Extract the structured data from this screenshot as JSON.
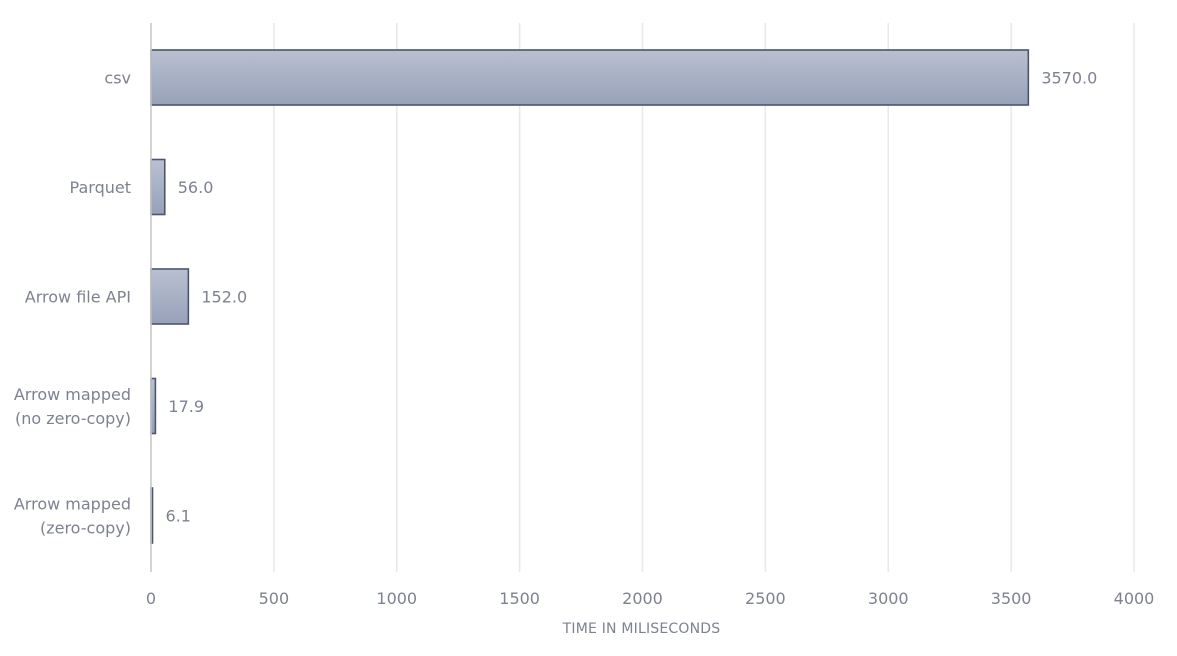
{
  "chart_data": {
    "type": "bar",
    "orientation": "horizontal",
    "title": "",
    "xlabel": "TIME IN MILISECONDS",
    "ylabel": "",
    "xlim": [
      0,
      4000
    ],
    "xticks": [
      0,
      500,
      1000,
      1500,
      2000,
      2500,
      3000,
      3500,
      4000
    ],
    "grid": true,
    "legend": "none",
    "categories": [
      [
        "csv"
      ],
      [
        "Parquet"
      ],
      [
        "Arrow file API"
      ],
      [
        "Arrow mapped",
        "(no zero-copy)"
      ],
      [
        "Arrow mapped",
        "(zero-copy)"
      ]
    ],
    "values": [
      3570.0,
      56.0,
      152.0,
      17.9,
      6.1
    ],
    "value_labels": [
      "3570.0",
      "56.0",
      "152.0",
      "17.9",
      "6.1"
    ],
    "colors": {
      "bar_top": "#b9c0d1",
      "bar_bottom": "#97a1b8",
      "bar_stroke": "#4a556e",
      "text": "#7d8291",
      "grid": "#e9e9e9",
      "axis": "#c9c9c9"
    }
  }
}
